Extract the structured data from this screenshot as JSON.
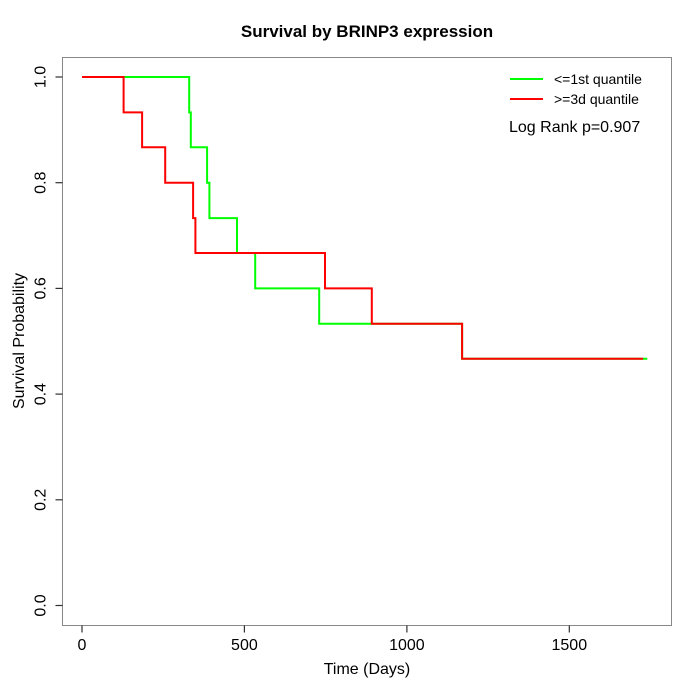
{
  "chart_data": {
    "type": "line",
    "subtype": "kaplan-meier-step",
    "title": "Survival by BRINP3 expression",
    "xlabel": "Time (Days)",
    "ylabel": "Survival Probability",
    "xlim": [
      0,
      1815
    ],
    "ylim": [
      0.0,
      1.0
    ],
    "xticks": [
      0,
      500,
      1000,
      1500
    ],
    "ytick_labels": [
      "0.0",
      "0.2",
      "0.4",
      "0.6",
      "0.8",
      "1.0"
    ],
    "grid": false,
    "legend_position": "top-right",
    "annotation": "Log Rank p=0.907",
    "series": [
      {
        "name": "<=1st quantile",
        "color": "#00ff00",
        "start_prob": 1.0,
        "events": [
          [
            330,
            0.933
          ],
          [
            335,
            0.867
          ],
          [
            385,
            0.8
          ],
          [
            392,
            0.733
          ],
          [
            477,
            0.667
          ],
          [
            533,
            0.6
          ],
          [
            730,
            0.533
          ],
          [
            1170,
            0.467
          ]
        ],
        "end_day": 1740
      },
      {
        "name": ">=3d quantile",
        "color": "#ff0000",
        "start_prob": 1.0,
        "events": [
          [
            128,
            0.933
          ],
          [
            185,
            0.867
          ],
          [
            256,
            0.8
          ],
          [
            342,
            0.733
          ],
          [
            349,
            0.667
          ],
          [
            748,
            0.6
          ],
          [
            892,
            0.533
          ],
          [
            1170,
            0.467
          ]
        ],
        "end_day": 1727
      }
    ]
  },
  "frame": {
    "box_color": "#888888",
    "tick_color": "#303030"
  }
}
